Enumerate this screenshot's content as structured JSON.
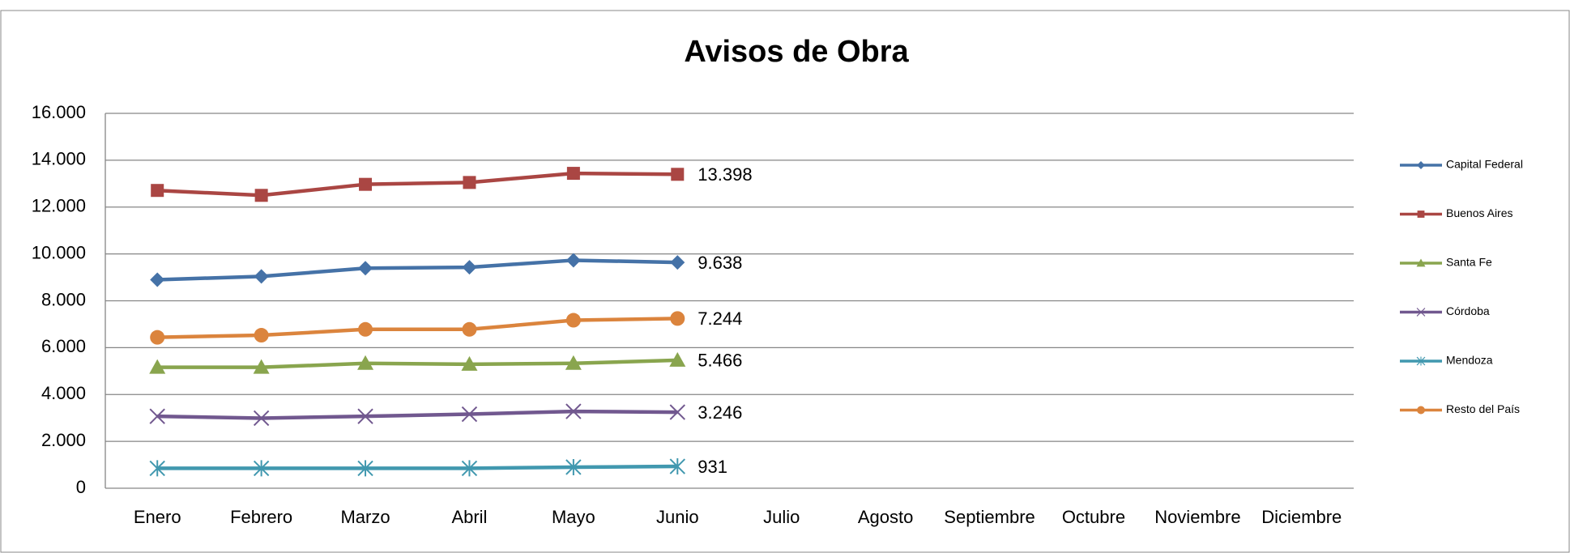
{
  "chart_data": {
    "type": "line",
    "title": "Avisos de Obra",
    "categories": [
      "Enero",
      "Febrero",
      "Marzo",
      "Abril",
      "Mayo",
      "Junio",
      "Julio",
      "Agosto",
      "Septiembre",
      "Octubre",
      "Noviembre",
      "Diciembre"
    ],
    "series": [
      {
        "name": "Capital Federal",
        "color": "#4572a7",
        "marker": "diamond",
        "values": [
          8900,
          9040,
          9390,
          9430,
          9730,
          9638,
          null,
          null,
          null,
          null,
          null,
          null
        ],
        "value_labels": [
          null,
          null,
          null,
          null,
          null,
          "9.638",
          null,
          null,
          null,
          null,
          null,
          null
        ]
      },
      {
        "name": "Buenos Aires",
        "color": "#aa4643",
        "marker": "square",
        "values": [
          12710,
          12500,
          12970,
          13050,
          13440,
          13398,
          null,
          null,
          null,
          null,
          null,
          null
        ],
        "value_labels": [
          null,
          null,
          null,
          null,
          null,
          "13.398",
          null,
          null,
          null,
          null,
          null,
          null
        ]
      },
      {
        "name": "Santa Fe",
        "color": "#89a54e",
        "marker": "triangle",
        "values": [
          5160,
          5160,
          5330,
          5290,
          5330,
          5466,
          null,
          null,
          null,
          null,
          null,
          null
        ],
        "value_labels": [
          null,
          null,
          null,
          null,
          null,
          "5.466",
          null,
          null,
          null,
          null,
          null,
          null
        ]
      },
      {
        "name": "Córdoba",
        "color": "#71588f",
        "marker": "x",
        "values": [
          3070,
          2990,
          3070,
          3160,
          3280,
          3246,
          null,
          null,
          null,
          null,
          null,
          null
        ],
        "value_labels": [
          null,
          null,
          null,
          null,
          null,
          "3.246",
          null,
          null,
          null,
          null,
          null,
          null
        ]
      },
      {
        "name": "Mendoza",
        "color": "#4198af",
        "marker": "star",
        "values": [
          850,
          850,
          850,
          850,
          900,
          931,
          null,
          null,
          null,
          null,
          null,
          null
        ],
        "value_labels": [
          null,
          null,
          null,
          null,
          null,
          "931",
          null,
          null,
          null,
          null,
          null,
          null
        ]
      },
      {
        "name": "Resto del País",
        "color": "#db843d",
        "marker": "circle",
        "values": [
          6440,
          6530,
          6780,
          6780,
          7170,
          7244,
          null,
          null,
          null,
          null,
          null,
          null
        ],
        "value_labels": [
          null,
          null,
          null,
          null,
          null,
          "7.244",
          null,
          null,
          null,
          null,
          null,
          null
        ]
      }
    ],
    "ylim": [
      0,
      16000
    ],
    "yticks": [
      0,
      {
        "value": 2000,
        "label": "2.000"
      },
      {
        "value": 4000,
        "label": "4.000"
      },
      {
        "value": 6000,
        "label": "6.000"
      },
      {
        "value": 8000,
        "label": "8.000"
      },
      {
        "value": 10000,
        "label": "10.000"
      },
      {
        "value": 12000,
        "label": "12.000"
      },
      {
        "value": 14000,
        "label": "14.000"
      },
      {
        "value": 16000,
        "label": "16.000"
      }
    ],
    "grid": true,
    "legend": "right"
  }
}
